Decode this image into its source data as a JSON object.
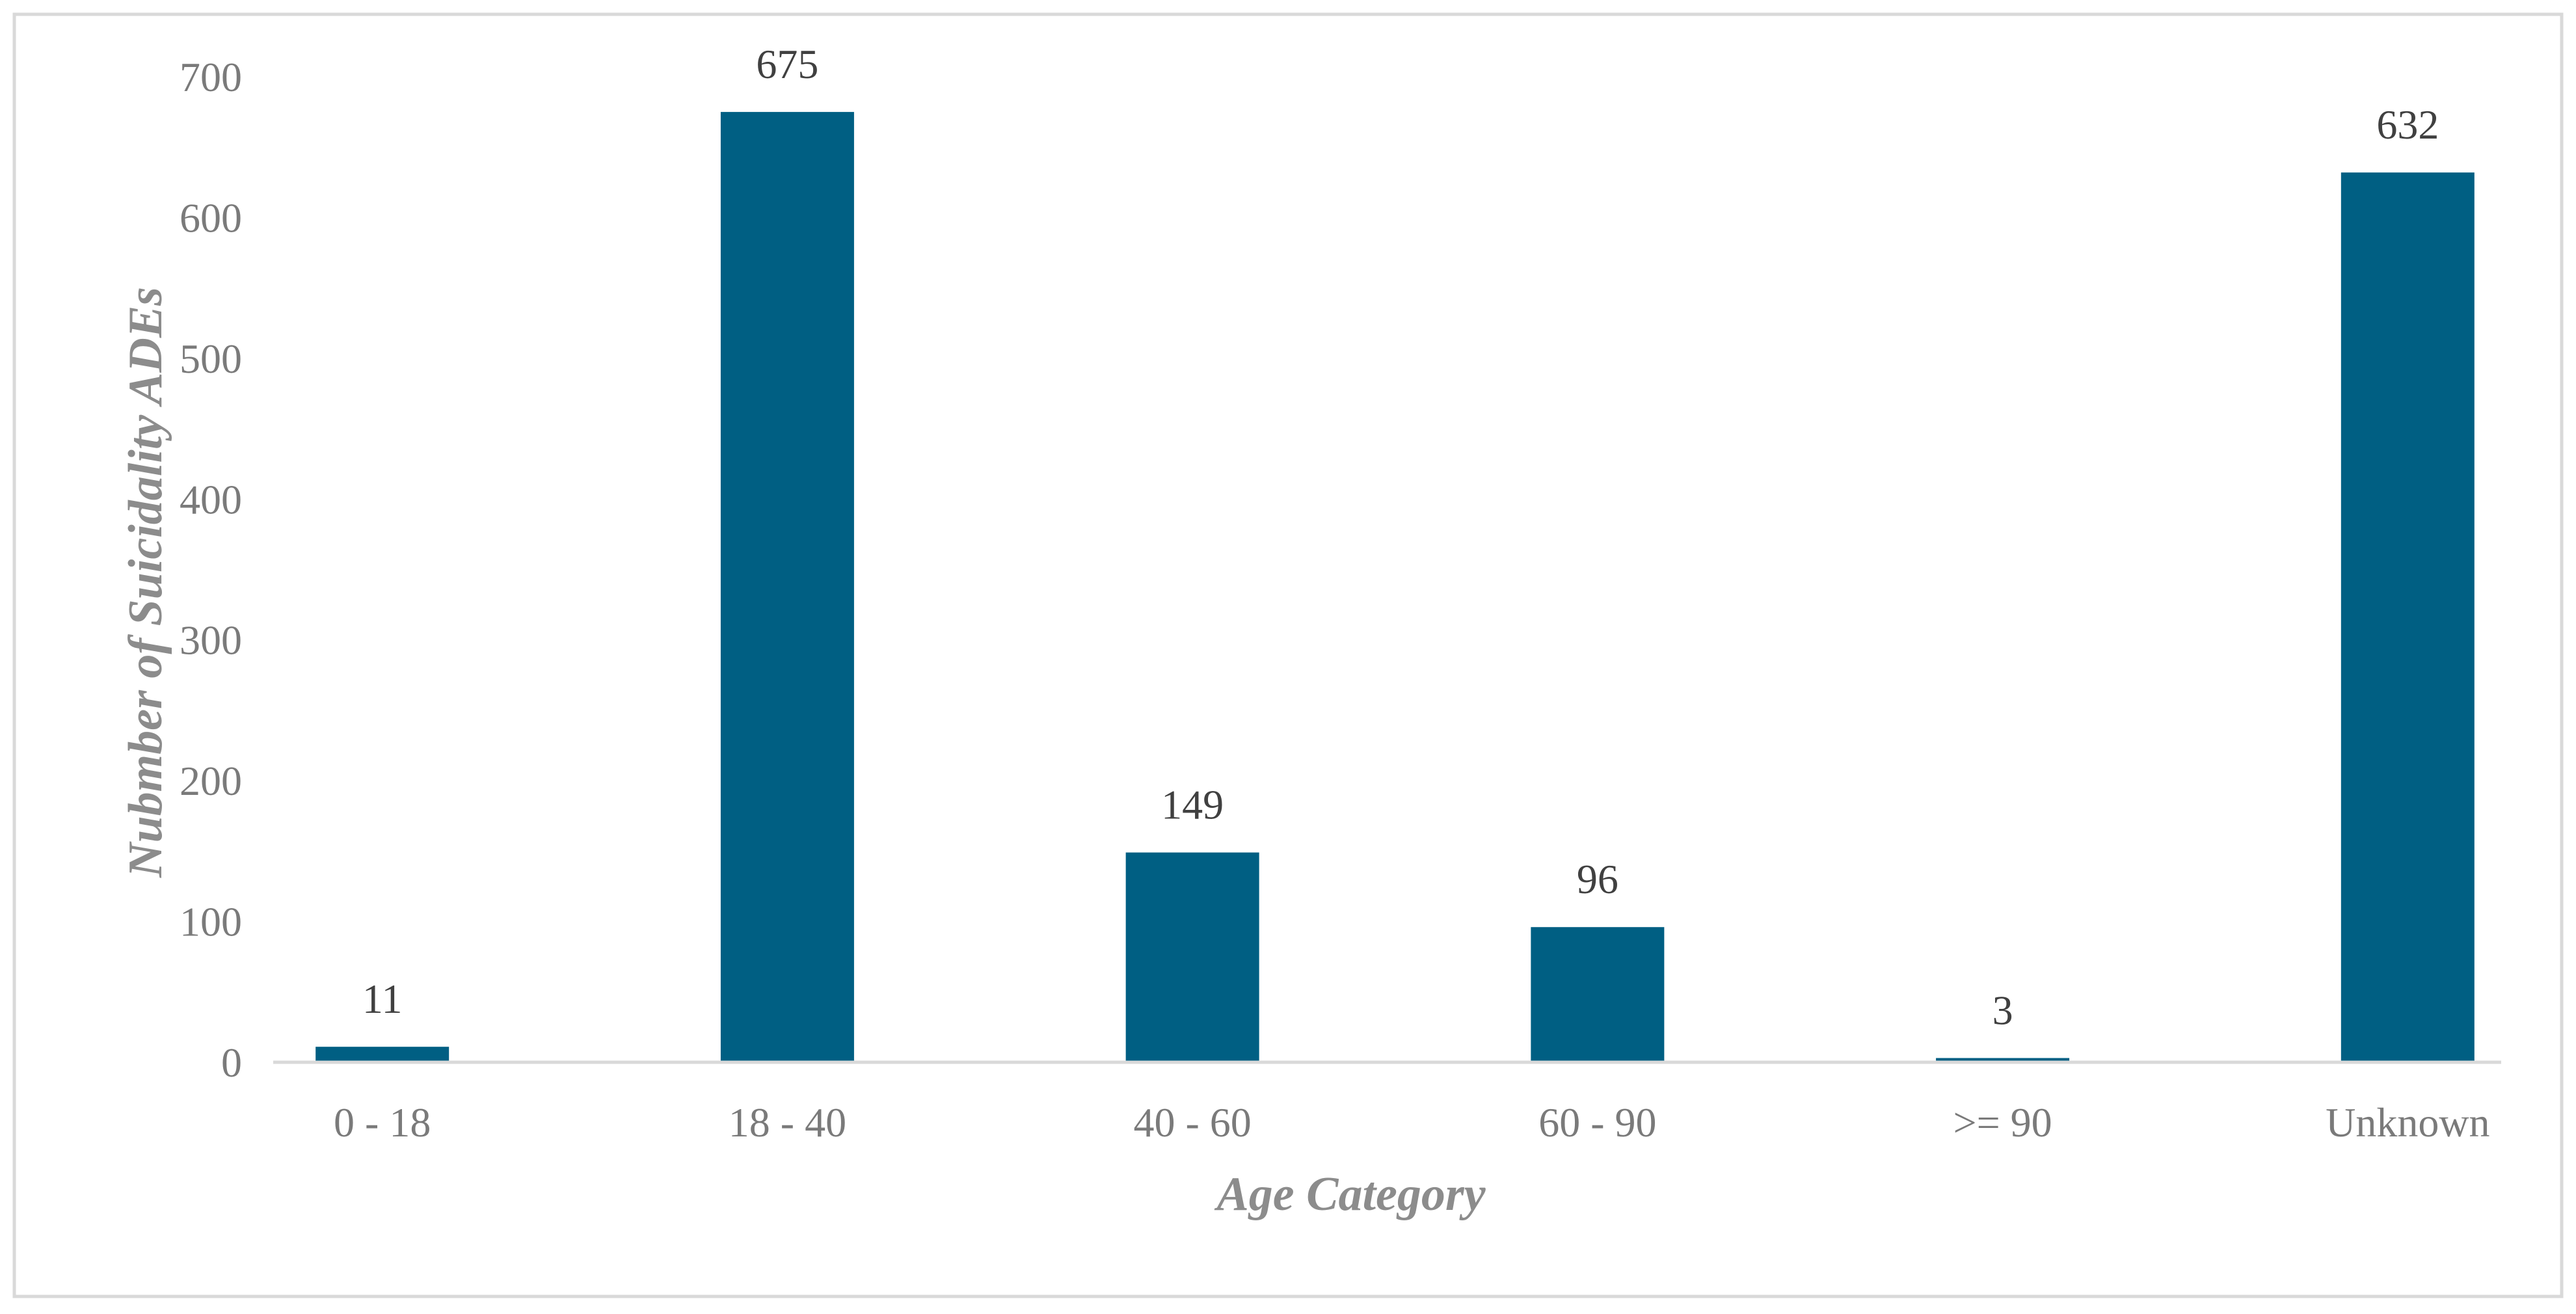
{
  "chart_data": {
    "type": "bar",
    "title": "",
    "xlabel": "Age Category",
    "ylabel": "Nubmber of Suicidality ADEs",
    "categories": [
      "0 - 18",
      "18 - 40",
      "40 - 60",
      "60 - 90",
      ">= 90",
      "Unknown"
    ],
    "values": [
      11,
      675,
      149,
      96,
      3,
      632
    ],
    "data_labels": [
      "11",
      "675",
      "149",
      "96",
      "3",
      "632"
    ],
    "yticks": [
      "0",
      "100",
      "200",
      "300",
      "400",
      "500",
      "600",
      "700"
    ],
    "ylim": [
      0,
      700
    ],
    "grid": false,
    "legend": "none",
    "bar_color": "#005f83",
    "axis_color": "#d9d9d9",
    "border_color": "#d9d9d9"
  }
}
